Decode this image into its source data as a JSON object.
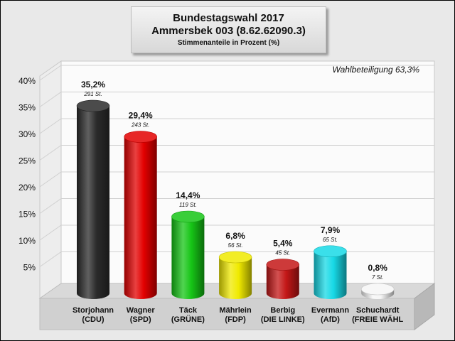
{
  "header": {
    "title": "Bundestagswahl 2017",
    "subtitle": "Ammersbek 003 (8.62.62090.3)",
    "note": "Stimmenanteile in Prozent (%)"
  },
  "chart_data": {
    "type": "bar",
    "title": "Bundestagswahl 2017",
    "subtitle": "Ammersbek 003 (8.62.62090.3)",
    "ylabel": "Stimmenanteile in Prozent (%)",
    "annotation": "Wahlbeteiligung 63,3%",
    "ylim": [
      0,
      40
    ],
    "y_ticks": [
      "5%",
      "10%",
      "15%",
      "20%",
      "25%",
      "30%",
      "35%",
      "40%"
    ],
    "grid": true,
    "categories": [
      {
        "name": "Storjohann",
        "party": "(CDU)"
      },
      {
        "name": "Wagner",
        "party": "(SPD)"
      },
      {
        "name": "Täck",
        "party": "(GRÜNE)"
      },
      {
        "name": "Mährlein",
        "party": "(FDP)"
      },
      {
        "name": "Berbig",
        "party": "(DIE LINKE)"
      },
      {
        "name": "Evermann",
        "party": "(AfD)"
      },
      {
        "name": "Schuchardt",
        "party": "(FREIE WÄHL"
      }
    ],
    "values": [
      35.2,
      29.4,
      14.4,
      6.8,
      5.4,
      7.9,
      0.8
    ],
    "value_labels": [
      "35,2%",
      "29,4%",
      "14,4%",
      "6,8%",
      "5,4%",
      "7,9%",
      "0,8%"
    ],
    "votes": [
      "291 St.",
      "243 St.",
      "119 St.",
      "56 St.",
      "45 St.",
      "65 St.",
      "7 St."
    ],
    "colors": [
      "#2b2b2b",
      "#e30000",
      "#16c516",
      "#f0ea00",
      "#c41717",
      "#17d9e6",
      "#f5f5f5"
    ]
  }
}
